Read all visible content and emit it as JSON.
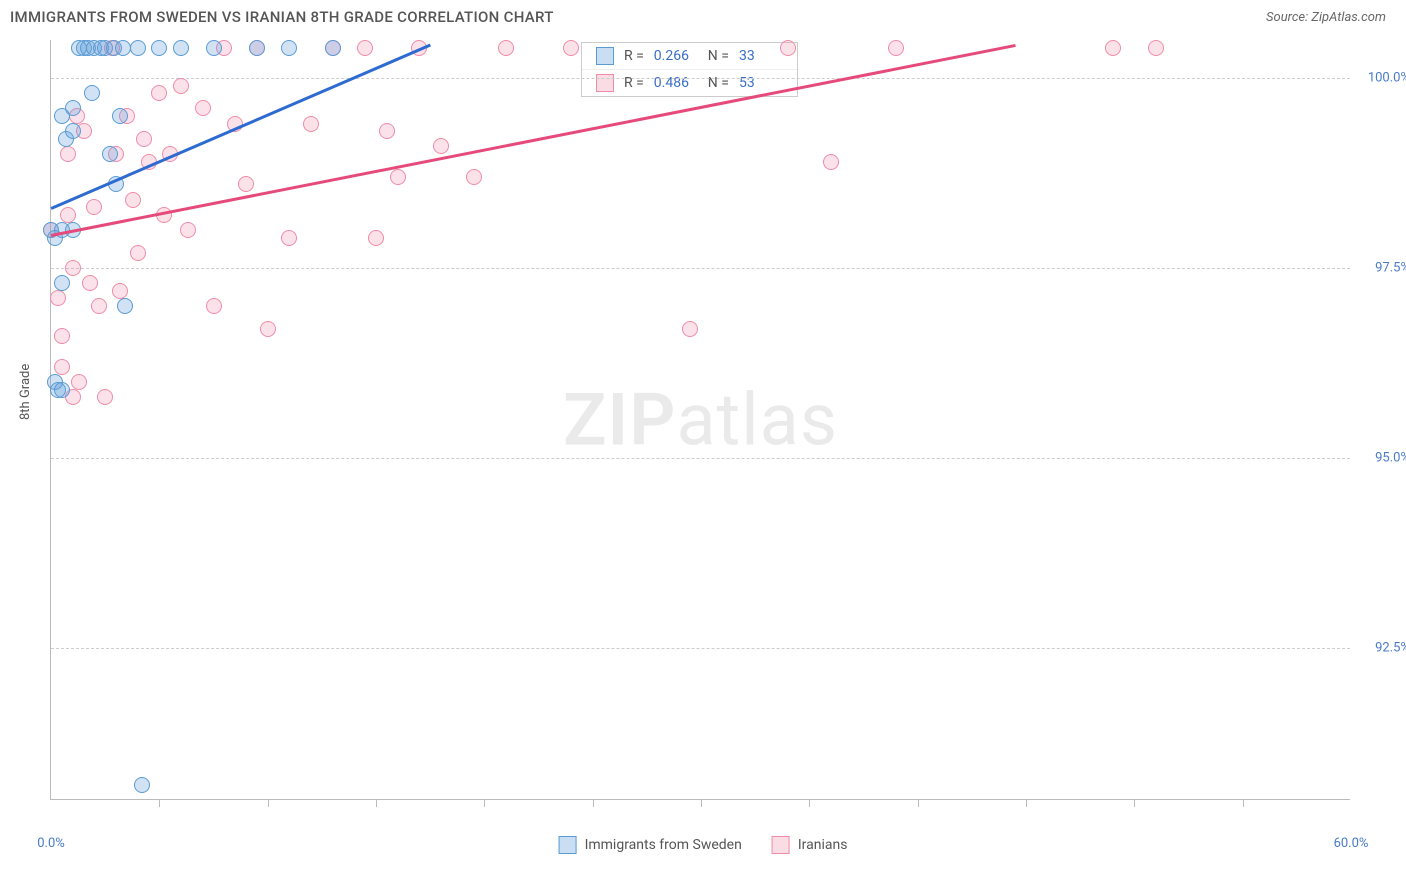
{
  "title": "IMMIGRANTS FROM SWEDEN VS IRANIAN 8TH GRADE CORRELATION CHART",
  "source": "Source: ZipAtlas.com",
  "watermark_bold": "ZIP",
  "watermark_light": "atlas",
  "chart": {
    "type": "scatter",
    "xlabel": "",
    "ylabel": "8th Grade",
    "xlim": [
      0,
      60
    ],
    "ylim": [
      90.5,
      100.5
    ],
    "xticks": [
      0,
      60
    ],
    "xtick_labels": [
      "0.0%",
      "60.0%"
    ],
    "xtick_minor": [
      5,
      10,
      15,
      20,
      25,
      30,
      35,
      40,
      45,
      50,
      55
    ],
    "yticks": [
      92.5,
      95.0,
      97.5,
      100.0
    ],
    "ytick_labels": [
      "92.5%",
      "95.0%",
      "97.5%",
      "100.0%"
    ],
    "grid_color": "#cccccc",
    "background_color": "#ffffff",
    "marker_size": 16,
    "series": [
      {
        "name": "Immigrants from Sweden",
        "color_fill": "rgba(100,160,220,0.3)",
        "color_stroke": "#5a9bd4",
        "R": "0.266",
        "N": "33",
        "trend": {
          "x1": 0,
          "y1": 98.3,
          "x2": 17.5,
          "y2": 100.45,
          "color": "#2e6bd0"
        },
        "points": [
          [
            0,
            98.0
          ],
          [
            0.2,
            97.9
          ],
          [
            0.2,
            96.0
          ],
          [
            0.3,
            95.9
          ],
          [
            0.5,
            97.3
          ],
          [
            0.5,
            98.0
          ],
          [
            0.5,
            99.5
          ],
          [
            0.7,
            99.2
          ],
          [
            1.0,
            99.6
          ],
          [
            1.0,
            99.3
          ],
          [
            1.0,
            98.0
          ],
          [
            1.3,
            100.4
          ],
          [
            1.5,
            100.4
          ],
          [
            1.7,
            100.4
          ],
          [
            1.9,
            99.8
          ],
          [
            2.0,
            100.4
          ],
          [
            2.3,
            100.4
          ],
          [
            2.5,
            100.4
          ],
          [
            2.7,
            99.0
          ],
          [
            2.9,
            100.4
          ],
          [
            3.0,
            98.6
          ],
          [
            3.2,
            99.5
          ],
          [
            3.3,
            100.4
          ],
          [
            3.4,
            97.0
          ],
          [
            4.0,
            100.4
          ],
          [
            4.2,
            90.7
          ],
          [
            5.0,
            100.4
          ],
          [
            6.0,
            100.4
          ],
          [
            7.5,
            100.4
          ],
          [
            9.5,
            100.4
          ],
          [
            11.0,
            100.4
          ],
          [
            13.0,
            100.4
          ],
          [
            0.5,
            95.9
          ]
        ]
      },
      {
        "name": "Iranians",
        "color_fill": "rgba(240,140,170,0.25)",
        "color_stroke": "#f08ca8",
        "R": "0.486",
        "N": "53",
        "trend": {
          "x1": 0,
          "y1": 97.95,
          "x2": 44.5,
          "y2": 100.45,
          "color": "#e54a7a"
        },
        "points": [
          [
            0,
            98.0
          ],
          [
            0.3,
            97.1
          ],
          [
            0.5,
            96.2
          ],
          [
            0.5,
            96.6
          ],
          [
            0.8,
            99.0
          ],
          [
            0.8,
            98.2
          ],
          [
            1.0,
            97.5
          ],
          [
            1.0,
            95.8
          ],
          [
            1.2,
            99.5
          ],
          [
            1.3,
            96.0
          ],
          [
            1.5,
            99.3
          ],
          [
            1.8,
            97.3
          ],
          [
            2.0,
            98.3
          ],
          [
            2.2,
            97.0
          ],
          [
            2.5,
            95.8
          ],
          [
            2.8,
            100.4
          ],
          [
            3.0,
            99.0
          ],
          [
            3.2,
            97.2
          ],
          [
            3.5,
            99.5
          ],
          [
            3.8,
            98.4
          ],
          [
            4.0,
            97.7
          ],
          [
            4.3,
            99.2
          ],
          [
            4.5,
            98.9
          ],
          [
            5.0,
            99.8
          ],
          [
            5.2,
            98.2
          ],
          [
            5.5,
            99.0
          ],
          [
            6.0,
            99.9
          ],
          [
            6.3,
            98.0
          ],
          [
            7.0,
            99.6
          ],
          [
            7.5,
            97.0
          ],
          [
            8.0,
            100.4
          ],
          [
            8.5,
            99.4
          ],
          [
            9.0,
            98.6
          ],
          [
            9.5,
            100.4
          ],
          [
            10.0,
            96.7
          ],
          [
            11.0,
            97.9
          ],
          [
            12.0,
            99.4
          ],
          [
            13.0,
            100.4
          ],
          [
            15.0,
            97.9
          ],
          [
            15.5,
            99.3
          ],
          [
            16.0,
            98.7
          ],
          [
            17.0,
            100.4
          ],
          [
            18.0,
            99.1
          ],
          [
            19.5,
            98.7
          ],
          [
            21.0,
            100.4
          ],
          [
            24.0,
            100.4
          ],
          [
            29.5,
            96.7
          ],
          [
            34.0,
            100.4
          ],
          [
            36.0,
            98.9
          ],
          [
            39.0,
            100.4
          ],
          [
            49.0,
            100.4
          ],
          [
            51.0,
            100.4
          ],
          [
            14.5,
            100.4
          ]
        ]
      }
    ],
    "legend_series": [
      {
        "label": "Immigrants from Sweden",
        "class": "blue"
      },
      {
        "label": "Iranians",
        "class": "pink"
      }
    ]
  }
}
